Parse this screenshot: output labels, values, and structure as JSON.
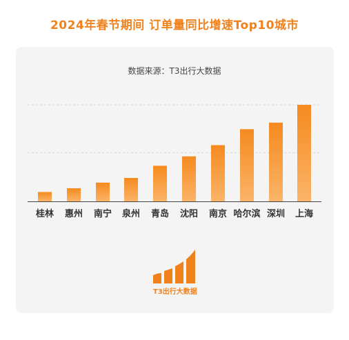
{
  "title": "2024年春节期间  订单量同比增速Top10城市",
  "source": "数据来源：T3出行大数据",
  "logo": {
    "text": "T3出行大数据",
    "color": "#f0821e"
  },
  "colors": {
    "title": "#f0821e",
    "bar_top": "#f58a1f",
    "bar_bottom": "#fbb468",
    "grid": "#d6d6d6",
    "axis": "#333333"
  },
  "chart_data": {
    "type": "bar",
    "title": "",
    "xlabel": "",
    "ylabel": "",
    "categories": [
      "桂林",
      "惠州",
      "南宁",
      "泉州",
      "青岛",
      "沈阳",
      "南京",
      "哈尔滨",
      "深圳",
      "上海"
    ],
    "values": [
      10,
      14,
      20,
      25,
      38,
      48,
      60,
      77,
      84,
      103
    ],
    "ylim": [
      0,
      105
    ],
    "grid": true,
    "gridlines": [
      52,
      103
    ],
    "y_ticks_visible": false
  }
}
